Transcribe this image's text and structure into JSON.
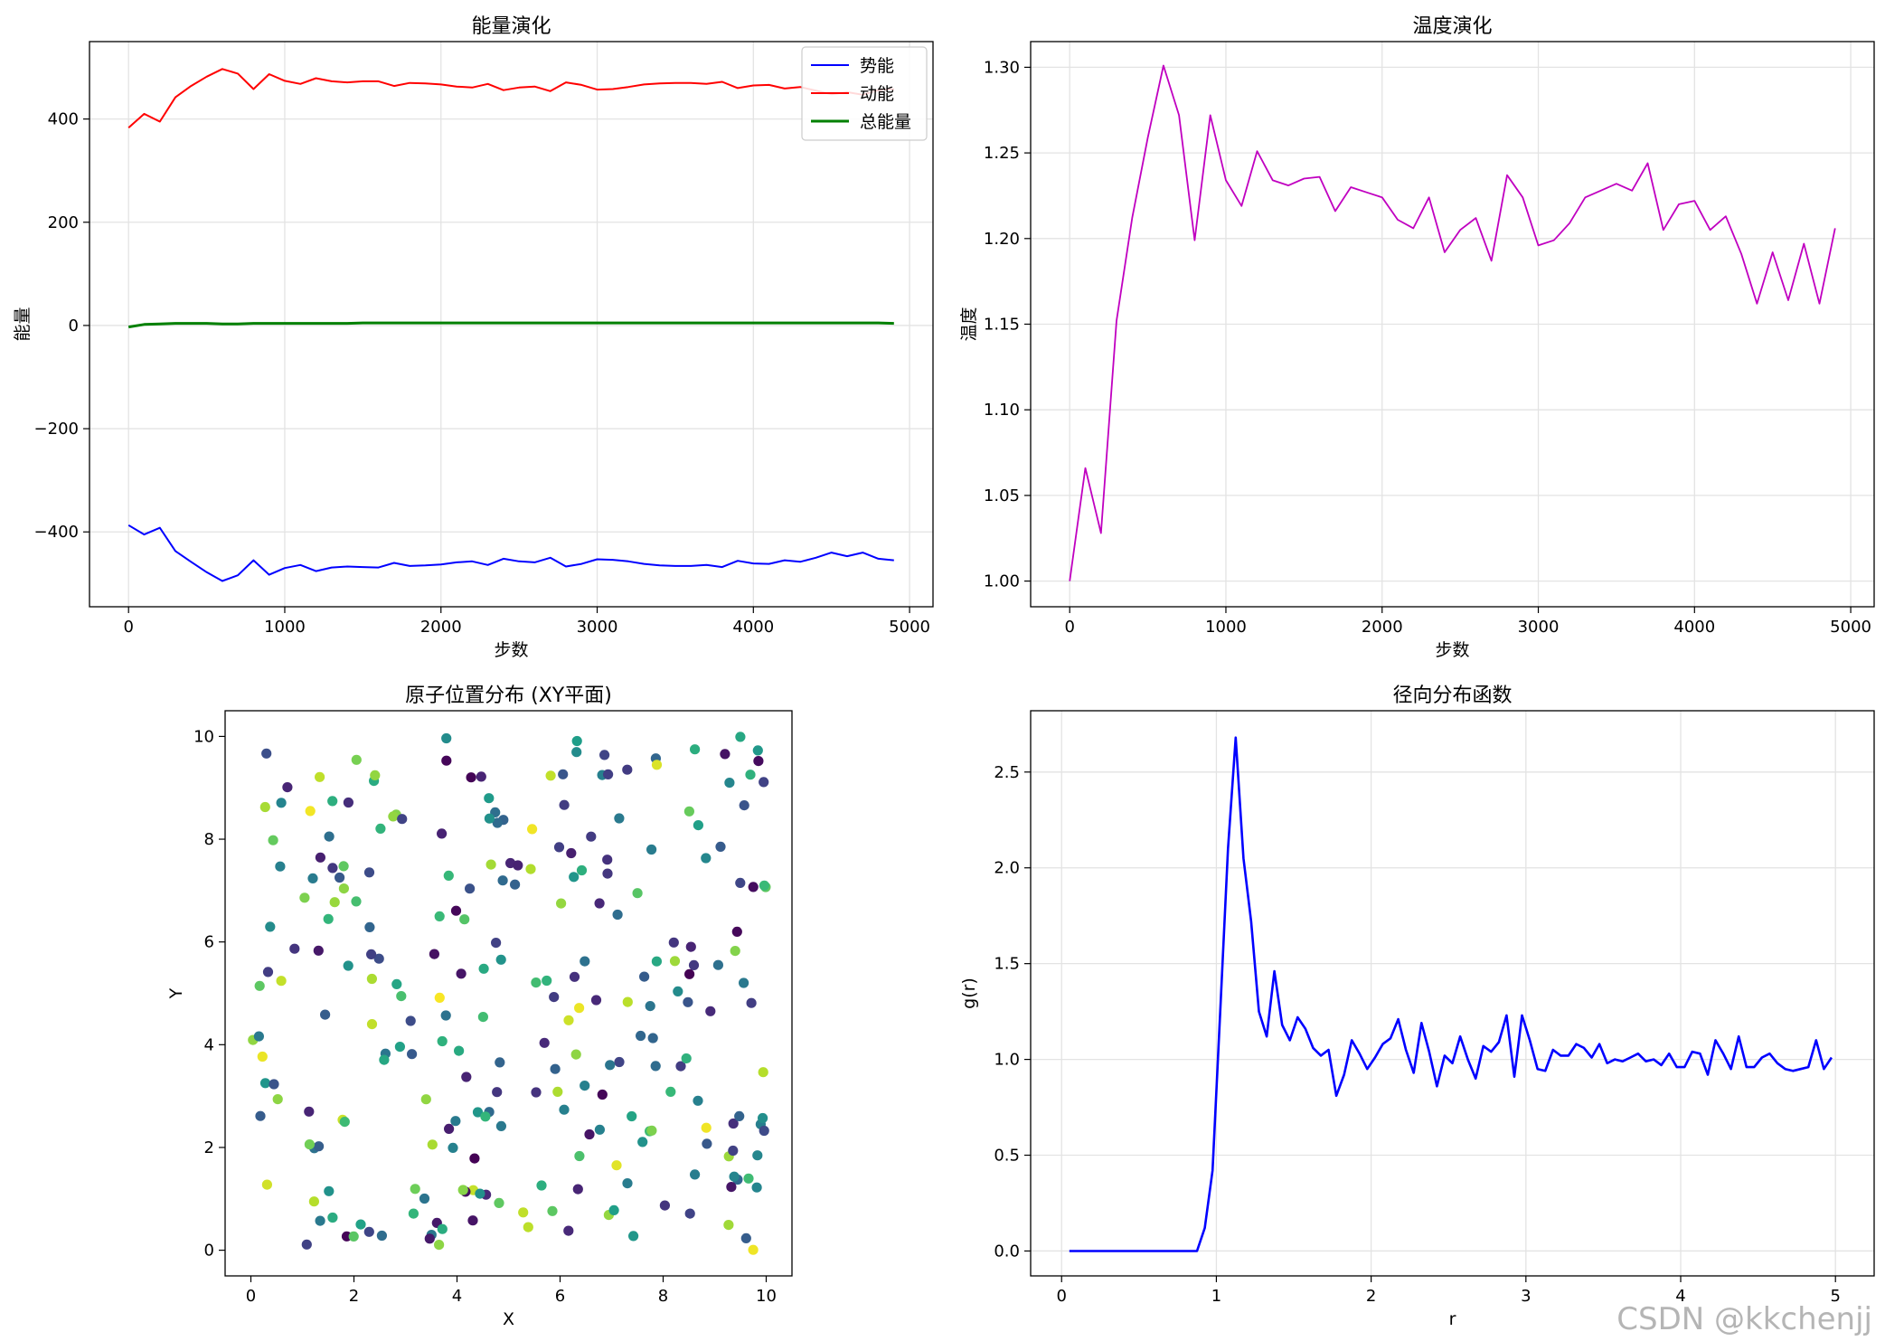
{
  "watermark": "CSDN @kkchenjj",
  "chart_data": [
    {
      "id": "energy",
      "type": "line",
      "title": "能量演化",
      "xlabel": "步数",
      "ylabel": "能量",
      "xlim": [
        -250,
        5150
      ],
      "ylim": [
        -545,
        550
      ],
      "xticks": [
        0,
        1000,
        2000,
        3000,
        4000,
        5000
      ],
      "yticks": [
        -400,
        -200,
        0,
        200,
        400
      ],
      "grid": true,
      "legend": "top-right",
      "x": [
        0,
        100,
        200,
        300,
        400,
        500,
        600,
        700,
        800,
        900,
        1000,
        1100,
        1200,
        1300,
        1400,
        1500,
        1600,
        1700,
        1800,
        1900,
        2000,
        2100,
        2200,
        2300,
        2400,
        2500,
        2600,
        2700,
        2800,
        2900,
        3000,
        3100,
        3200,
        3300,
        3400,
        3500,
        3600,
        3700,
        3800,
        3900,
        4000,
        4100,
        4200,
        4300,
        4400,
        4500,
        4600,
        4700,
        4800,
        4900
      ],
      "series": [
        {
          "name": "势能",
          "color": "#0000ff",
          "width": 2,
          "values": [
            -387,
            -405,
            -392,
            -437,
            -458,
            -478,
            -495,
            -484,
            -455,
            -483,
            -470,
            -464,
            -476,
            -469,
            -467,
            -468,
            -469,
            -460,
            -466,
            -465,
            -463,
            -459,
            -457,
            -464,
            -452,
            -457,
            -459,
            -450,
            -467,
            -462,
            -453,
            -454,
            -457,
            -462,
            -465,
            -466,
            -466,
            -464,
            -468,
            -456,
            -461,
            -462,
            -455,
            -458,
            -450,
            -440,
            -447,
            -440,
            -452,
            -455
          ]
        },
        {
          "name": "动能",
          "color": "#ff0000",
          "width": 2,
          "values": [
            383,
            410,
            395,
            442,
            464,
            482,
            497,
            488,
            458,
            487,
            474,
            468,
            479,
            473,
            471,
            473,
            473,
            464,
            470,
            469,
            467,
            463,
            461,
            468,
            456,
            461,
            463,
            454,
            471,
            466,
            457,
            458,
            462,
            467,
            469,
            470,
            470,
            468,
            472,
            460,
            465,
            466,
            459,
            462,
            455,
            448,
            452,
            447,
            456,
            458
          ]
        },
        {
          "name": "总能量",
          "color": "#008000",
          "width": 3,
          "values": [
            -3,
            2,
            3,
            4,
            4,
            4,
            3,
            3,
            4,
            4,
            4,
            4,
            4,
            4,
            4,
            5,
            5,
            5,
            5,
            5,
            5,
            5,
            5,
            5,
            5,
            5,
            5,
            5,
            5,
            5,
            5,
            5,
            5,
            5,
            5,
            5,
            5,
            5,
            5,
            5,
            5,
            5,
            5,
            5,
            5,
            5,
            5,
            5,
            5,
            4
          ]
        }
      ]
    },
    {
      "id": "temperature",
      "type": "line",
      "title": "温度演化",
      "xlabel": "步数",
      "ylabel": "温度",
      "xlim": [
        -250,
        5150
      ],
      "ylim": [
        0.985,
        1.315
      ],
      "xticks": [
        0,
        1000,
        2000,
        3000,
        4000,
        5000
      ],
      "yticks": [
        1.0,
        1.05,
        1.1,
        1.15,
        1.2,
        1.25,
        1.3
      ],
      "ytick_labels": [
        "1.00",
        "1.05",
        "1.10",
        "1.15",
        "1.20",
        "1.25",
        "1.30"
      ],
      "grid": true,
      "x": [
        0,
        100,
        200,
        300,
        400,
        500,
        600,
        700,
        800,
        900,
        1000,
        1100,
        1200,
        1300,
        1400,
        1500,
        1600,
        1700,
        1800,
        1900,
        2000,
        2100,
        2200,
        2300,
        2400,
        2500,
        2600,
        2700,
        2800,
        2900,
        3000,
        3100,
        3200,
        3300,
        3400,
        3500,
        3600,
        3700,
        3800,
        3900,
        4000,
        4100,
        4200,
        4300,
        4400,
        4500,
        4600,
        4700,
        4800,
        4900
      ],
      "series": [
        {
          "name": "",
          "color": "#c000c0",
          "width": 1.8,
          "values": [
            1.0,
            1.066,
            1.028,
            1.152,
            1.212,
            1.259,
            1.301,
            1.272,
            1.199,
            1.272,
            1.234,
            1.219,
            1.251,
            1.234,
            1.231,
            1.235,
            1.236,
            1.216,
            1.23,
            1.227,
            1.224,
            1.211,
            1.206,
            1.224,
            1.192,
            1.205,
            1.212,
            1.187,
            1.237,
            1.224,
            1.196,
            1.199,
            1.209,
            1.224,
            1.228,
            1.232,
            1.228,
            1.244,
            1.205,
            1.22,
            1.222,
            1.205,
            1.213,
            1.191,
            1.162,
            1.192,
            1.164,
            1.197,
            1.162,
            1.206
          ]
        }
      ]
    },
    {
      "id": "positions",
      "type": "scatter",
      "title": "原子位置分布 (XY平面)",
      "xlabel": "X",
      "ylabel": "Y",
      "xlim": [
        -0.5,
        10.5
      ],
      "ylim": [
        -0.5,
        10.5
      ],
      "xticks": [
        0,
        2,
        4,
        6,
        8,
        10
      ],
      "yticks": [
        0,
        2,
        4,
        6,
        8,
        10
      ],
      "grid": false,
      "colormap": "viridis",
      "n_points": 256,
      "seed": 7
    },
    {
      "id": "rdf",
      "type": "line",
      "title": "径向分布函数",
      "xlabel": "r",
      "ylabel": "g(r)",
      "xlim": [
        -0.2,
        5.25
      ],
      "ylim": [
        -0.13,
        2.82
      ],
      "xticks": [
        0,
        1,
        2,
        3,
        4,
        5
      ],
      "yticks": [
        0.0,
        0.5,
        1.0,
        1.5,
        2.0,
        2.5
      ],
      "ytick_labels": [
        "0.0",
        "0.5",
        "1.0",
        "1.5",
        "2.0",
        "2.5"
      ],
      "grid": true,
      "series": [
        {
          "name": "",
          "color": "#0000ff",
          "width": 2.6,
          "x": [
            0.05,
            0.875,
            0.925,
            0.975,
            1.025,
            1.075,
            1.125,
            1.175,
            1.225,
            1.275,
            1.325,
            1.375,
            1.425,
            1.475,
            1.525,
            1.575,
            1.625,
            1.675,
            1.725,
            1.775,
            1.825,
            1.875,
            1.925,
            1.975,
            2.025,
            2.075,
            2.125,
            2.175,
            2.225,
            2.275,
            2.325,
            2.375,
            2.425,
            2.475,
            2.525,
            2.575,
            2.625,
            2.675,
            2.725,
            2.775,
            2.825,
            2.875,
            2.925,
            2.975,
            3.025,
            3.075,
            3.125,
            3.175,
            3.225,
            3.275,
            3.325,
            3.375,
            3.425,
            3.475,
            3.525,
            3.575,
            3.625,
            3.675,
            3.725,
            3.775,
            3.825,
            3.875,
            3.925,
            3.975,
            4.025,
            4.075,
            4.125,
            4.175,
            4.225,
            4.275,
            4.325,
            4.375,
            4.425,
            4.475,
            4.525,
            4.575,
            4.625,
            4.675,
            4.725,
            4.775,
            4.825,
            4.875,
            4.925,
            4.975
          ],
          "values": [
            0.0,
            0.0,
            0.12,
            0.42,
            1.25,
            2.1,
            2.68,
            2.05,
            1.72,
            1.25,
            1.12,
            1.46,
            1.18,
            1.1,
            1.22,
            1.16,
            1.06,
            1.02,
            1.05,
            0.81,
            0.92,
            1.1,
            1.03,
            0.95,
            1.01,
            1.08,
            1.11,
            1.21,
            1.05,
            0.93,
            1.19,
            1.04,
            0.86,
            1.02,
            0.98,
            1.12,
            1.0,
            0.9,
            1.07,
            1.04,
            1.09,
            1.23,
            0.91,
            1.23,
            1.1,
            0.95,
            0.94,
            1.05,
            1.02,
            1.02,
            1.08,
            1.06,
            1.01,
            1.08,
            0.98,
            1.0,
            0.99,
            1.01,
            1.03,
            0.99,
            1.0,
            0.97,
            1.03,
            0.96,
            0.96,
            1.04,
            1.03,
            0.92,
            1.1,
            1.03,
            0.95,
            1.12,
            0.96,
            0.96,
            1.01,
            1.03,
            0.98,
            0.95,
            0.94,
            0.95,
            0.96,
            1.1,
            0.95,
            1.01
          ]
        }
      ]
    }
  ]
}
